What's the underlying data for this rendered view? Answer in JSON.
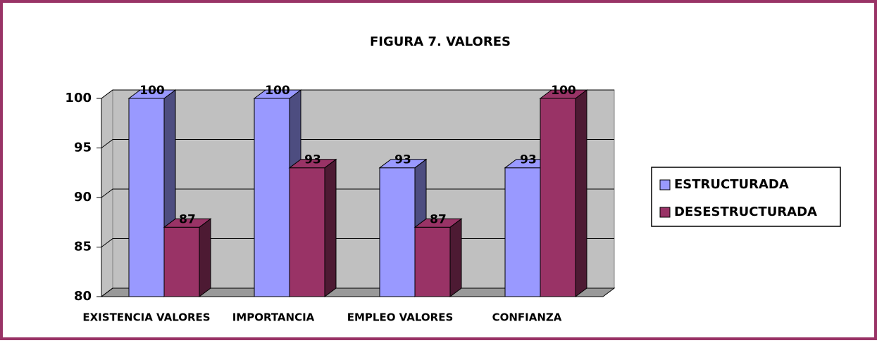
{
  "chart_data": {
    "type": "bar3d",
    "title": "FIGURA 7. VALORES",
    "categories": [
      "EXISTENCIA VALORES",
      "IMPORTANCIA",
      "EMPLEO VALORES",
      "CONFIANZA"
    ],
    "series": [
      {
        "name": "ESTRUCTURADA",
        "color": "#9999ff",
        "values": [
          100,
          100,
          93,
          93
        ]
      },
      {
        "name": "DESESTRUCTURADA",
        "color": "#993366",
        "values": [
          87,
          93,
          87,
          100
        ]
      }
    ],
    "ylim": [
      80,
      100
    ],
    "yticks": [
      80,
      85,
      90,
      95,
      100
    ],
    "grid": true,
    "legend": "right"
  }
}
